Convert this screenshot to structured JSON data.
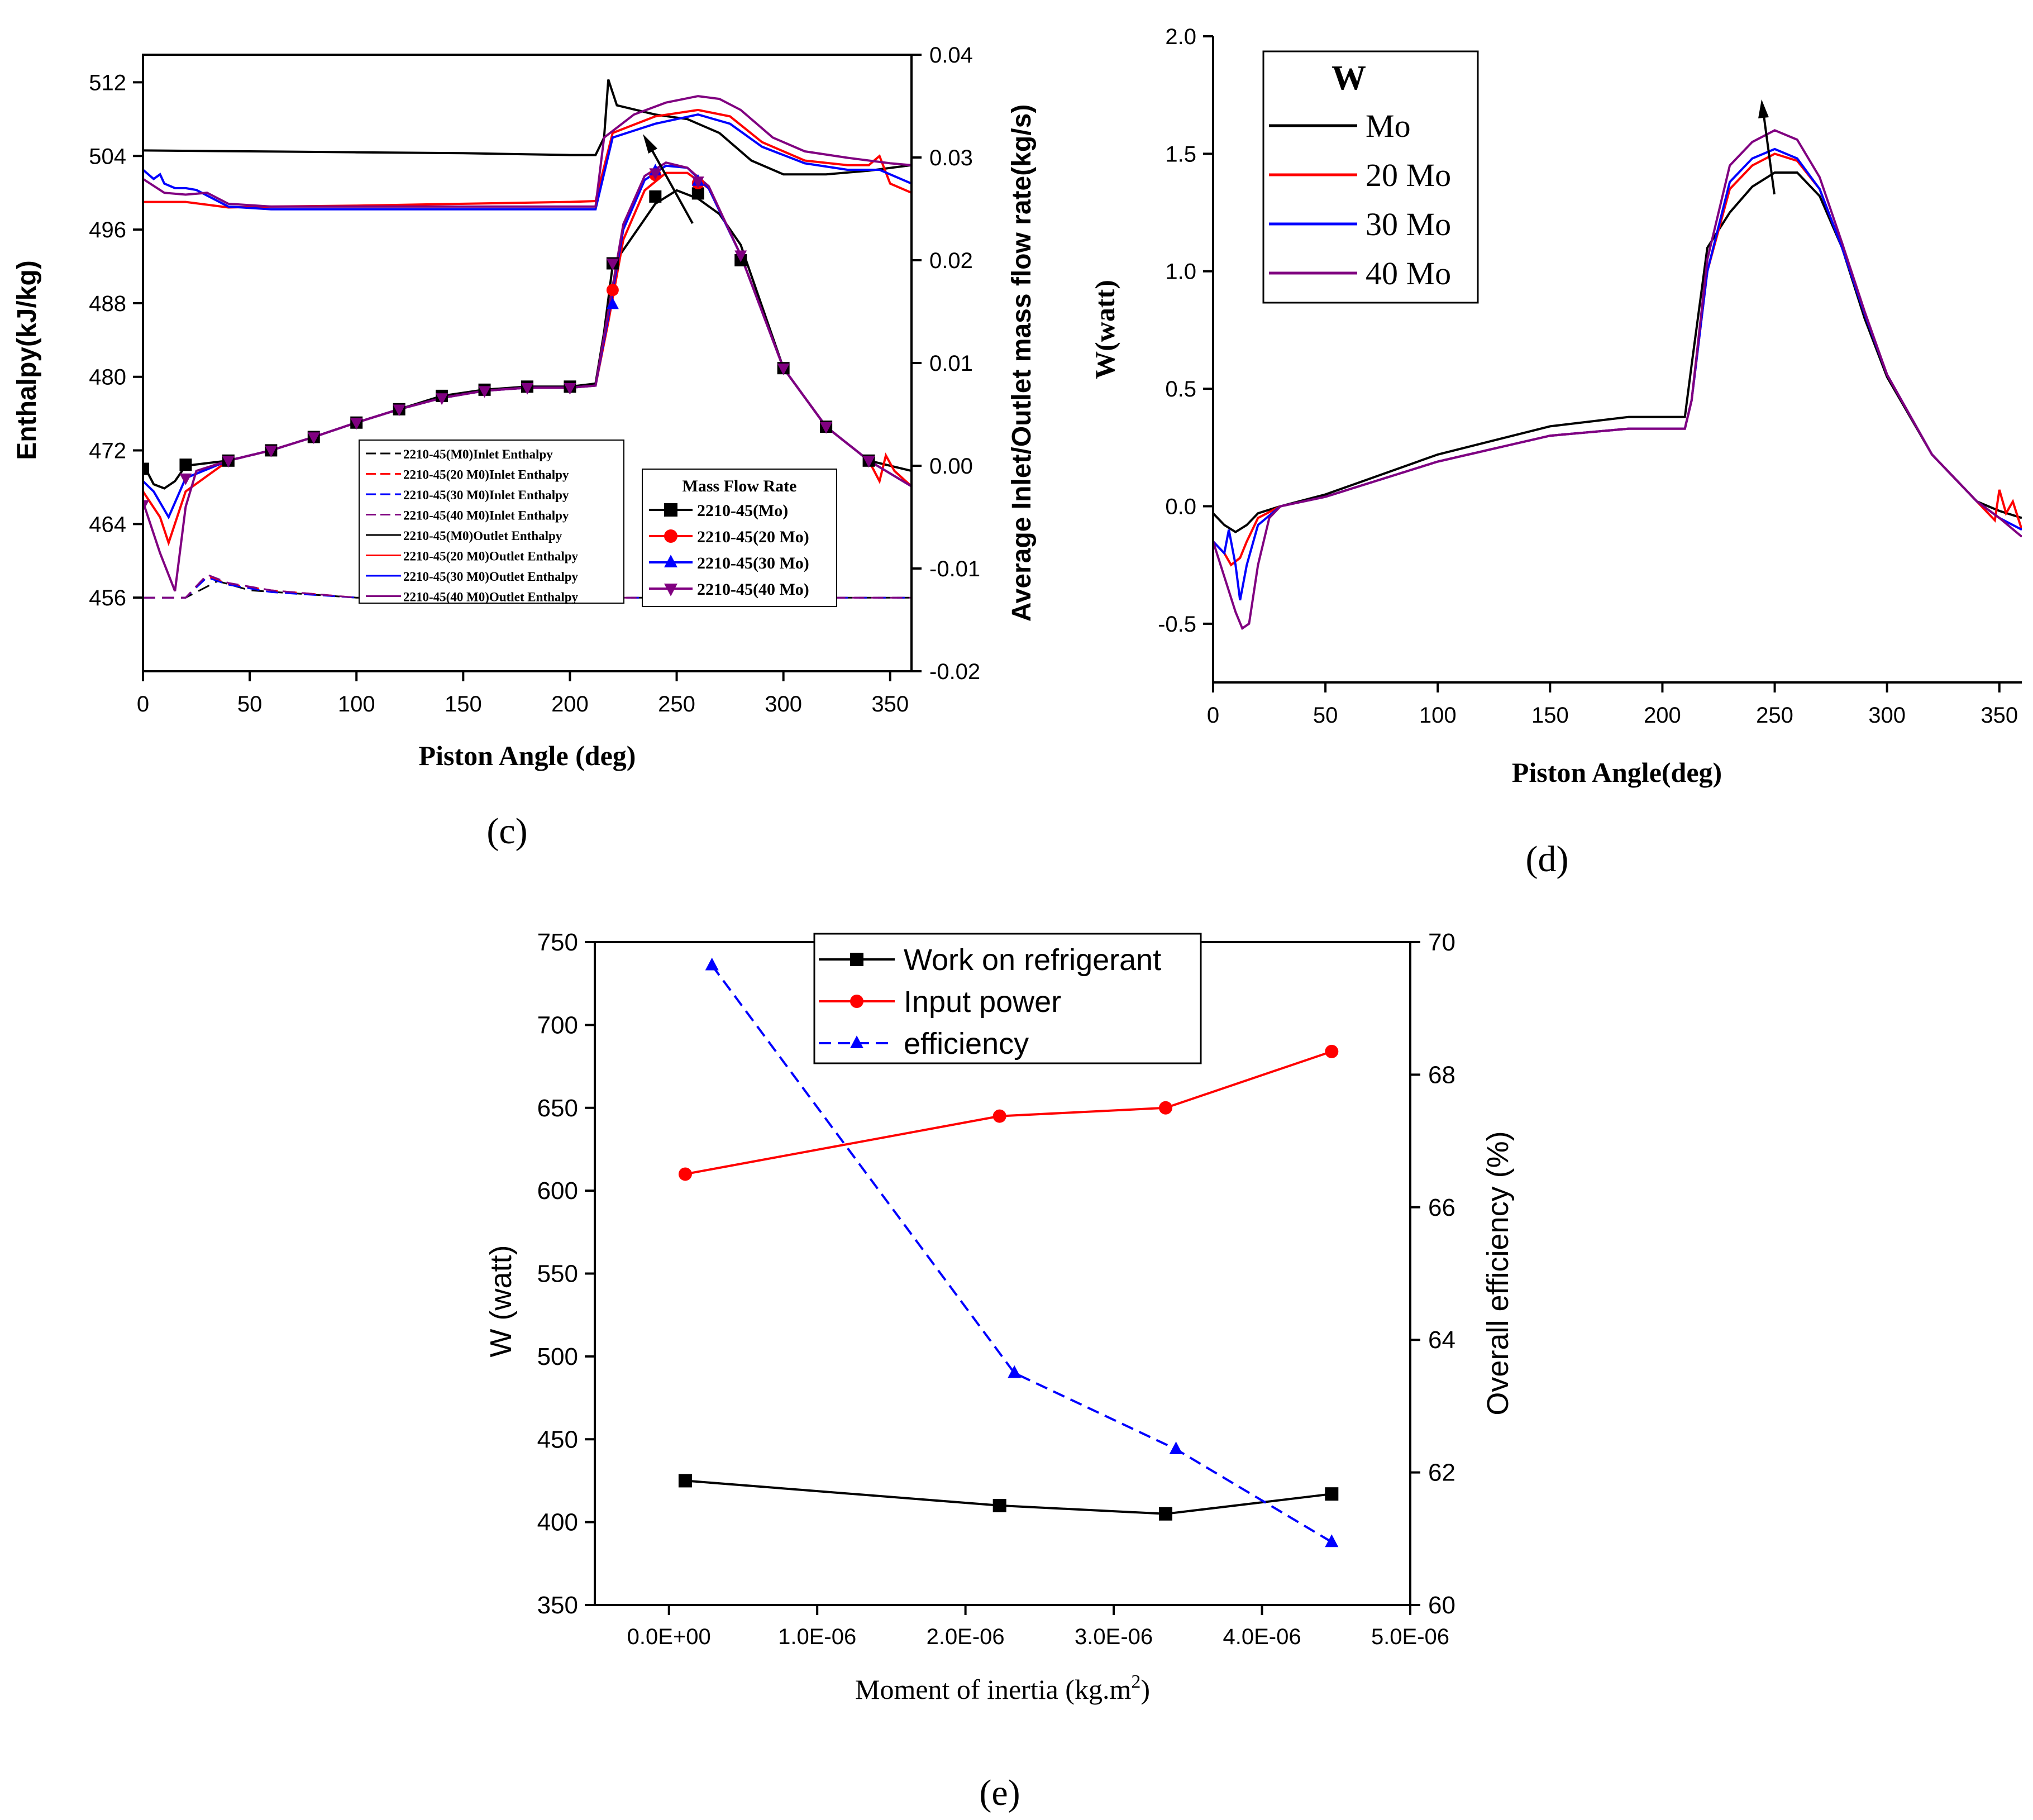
{
  "chart_data": [
    {
      "id": "c",
      "type": "line",
      "panel_label": "(c)",
      "xlabel": "Piston Angle (deg)",
      "ylabel": "Enthalpy(kJ/kg)",
      "y2label": "Average Inlet/Outlet mass flow rate(kg/s)",
      "xlim": [
        0,
        360
      ],
      "ylim": [
        448,
        515
      ],
      "y2lim": [
        -0.02,
        0.04
      ],
      "xticks": [
        "0",
        "50",
        "100",
        "150",
        "200",
        "250",
        "300",
        "350"
      ],
      "yticks": [
        "456",
        "464",
        "472",
        "480",
        "488",
        "496",
        "504",
        "512"
      ],
      "y2ticks": [
        "-0.02",
        "-0.01",
        "0.00",
        "0.01",
        "0.02",
        "0.03",
        "0.04"
      ],
      "enthalpy_legend": [
        "2210-45(M0)Inlet Enthalpy",
        "2210-45(20 M0)Inlet Enthalpy",
        "2210-45(30 M0)Inlet Enthalpy",
        "2210-45(40 M0)Inlet Enthalpy",
        "2210-45(M0)Outlet Enthalpy",
        "2210-45(20 M0)Outlet Enthalpy",
        "2210-45(30 M0)Outlet Enthalpy",
        "2210-45(40 M0)Outlet Enthalpy"
      ],
      "mass_flow_legend_title": "Mass Flow Rate",
      "mass_flow_legend": [
        "2210-45(Mo)",
        "2210-45(20 Mo)",
        "2210-45(30 Mo)",
        "2210-45(40 Mo)"
      ],
      "colors": [
        "#000000",
        "#ff0000",
        "#0000ff",
        "#800080"
      ],
      "inlet_enthalpy": [
        {
          "name": "M0",
          "x": [
            0,
            20,
            35,
            50,
            100,
            150,
            200,
            250,
            300,
            360
          ],
          "y": [
            456,
            456,
            457.8,
            456.8,
            456,
            456,
            456,
            456,
            456,
            456
          ]
        },
        {
          "name": "20 M0",
          "x": [
            0,
            20,
            30,
            40,
            60,
            100,
            150,
            200,
            250,
            300,
            360
          ],
          "y": [
            456,
            456,
            458.3,
            457.5,
            456.8,
            456,
            456,
            456,
            456,
            456,
            456
          ]
        },
        {
          "name": "30 M0",
          "x": [
            0,
            20,
            30,
            40,
            60,
            100,
            150,
            200,
            250,
            300,
            360
          ],
          "y": [
            456,
            456,
            458.2,
            457.4,
            456.6,
            456,
            456,
            456,
            456,
            456,
            456
          ]
        },
        {
          "name": "40 M0",
          "x": [
            0,
            20,
            30,
            40,
            60,
            100,
            150,
            200,
            250,
            300,
            360
          ],
          "y": [
            456,
            456,
            458.5,
            457.6,
            456.8,
            456,
            456,
            456,
            456,
            456,
            456
          ]
        }
      ],
      "outlet_enthalpy": [
        {
          "name": "M0",
          "x": [
            0,
            50,
            100,
            150,
            200,
            212,
            216,
            218,
            222,
            240,
            255,
            270,
            285,
            300,
            320,
            340,
            360
          ],
          "y": [
            504.6,
            504.5,
            504.4,
            504.3,
            504.1,
            504.1,
            506,
            512.3,
            509.5,
            508.5,
            508,
            506.5,
            503.5,
            502,
            502,
            502.4,
            503
          ]
        },
        {
          "name": "20 M0",
          "x": [
            0,
            20,
            40,
            60,
            100,
            150,
            200,
            212,
            220,
            240,
            260,
            275,
            290,
            310,
            330,
            340,
            345,
            350,
            360
          ],
          "y": [
            499,
            499,
            498.4,
            498.5,
            498.6,
            498.8,
            499,
            499.1,
            506.5,
            508.3,
            509,
            508.3,
            505.5,
            503.5,
            503,
            503,
            504,
            501,
            500
          ]
        },
        {
          "name": "30 M0",
          "x": [
            0,
            5,
            8,
            10,
            15,
            20,
            25,
            40,
            60,
            100,
            150,
            200,
            212,
            220,
            240,
            260,
            275,
            290,
            310,
            330,
            345,
            360
          ],
          "y": [
            502.5,
            501.5,
            502,
            501,
            500.5,
            500.5,
            500.3,
            498.5,
            498.2,
            498.2,
            498.2,
            498.2,
            498.2,
            506,
            507.5,
            508.5,
            507.5,
            505,
            503.2,
            502.5,
            502.5,
            501
          ]
        },
        {
          "name": "40 M0",
          "x": [
            0,
            10,
            20,
            30,
            40,
            60,
            100,
            150,
            200,
            212,
            216,
            230,
            245,
            260,
            270,
            280,
            295,
            310,
            330,
            350,
            360
          ],
          "y": [
            501.5,
            500,
            499.8,
            500,
            498.8,
            498.5,
            498.5,
            498.5,
            498.5,
            498.5,
            506,
            508.5,
            509.8,
            510.5,
            510.2,
            509,
            506,
            504.5,
            503.8,
            503.2,
            503
          ]
        }
      ],
      "mass_flow": [
        {
          "name": "2210-45(Mo)",
          "x": [
            0,
            5,
            10,
            15,
            20,
            40,
            60,
            80,
            100,
            120,
            140,
            160,
            180,
            200,
            212,
            216,
            220,
            230,
            240,
            250,
            260,
            270,
            280,
            300,
            320,
            340,
            360
          ],
          "y": [
            0.0002,
            -0.0018,
            -0.0022,
            -0.0015,
            0,
            0.0005,
            0.0015,
            0.0028,
            0.0042,
            0.0055,
            0.0068,
            0.0074,
            0.0077,
            0.0077,
            0.008,
            0.013,
            0.0195,
            0.0225,
            0.0255,
            0.0268,
            0.026,
            0.0245,
            0.0215,
            0.0095,
            0.0038,
            0.0005,
            -0.0005
          ],
          "markers_x": [
            0,
            20,
            40,
            60,
            80,
            100,
            120,
            140,
            160,
            180,
            200,
            220,
            240,
            260,
            280,
            300,
            320,
            340
          ],
          "markers_y": [
            -0.0003,
            0.0001,
            0.0005,
            0.0015,
            0.0028,
            0.0042,
            0.0055,
            0.0068,
            0.0074,
            0.0077,
            0.0077,
            0.0197,
            0.0262,
            0.0265,
            0.02,
            0.0095,
            0.0038,
            0.0005
          ]
        },
        {
          "name": "2210-45(20 Mo)",
          "x": [
            0,
            8,
            12,
            20,
            40,
            60,
            80,
            100,
            120,
            140,
            160,
            180,
            200,
            212,
            218,
            225,
            235,
            245,
            255,
            265,
            280,
            300,
            320,
            340,
            345,
            348,
            352,
            360
          ],
          "y": [
            -0.0025,
            -0.005,
            -0.0075,
            -0.0025,
            0.0005,
            0.0015,
            0.0028,
            0.0042,
            0.0055,
            0.0066,
            0.0073,
            0.0076,
            0.0076,
            0.0078,
            0.014,
            0.022,
            0.0268,
            0.0285,
            0.0285,
            0.027,
            0.0205,
            0.0095,
            0.0038,
            0.0005,
            -0.0015,
            0.001,
            -0.0005,
            -0.002
          ],
          "markers_x": [
            220,
            240,
            260
          ],
          "markers_y": [
            0.0171,
            0.0283,
            0.0275
          ]
        },
        {
          "name": "2210-45(30 Mo)",
          "x": [
            0,
            5,
            12,
            20,
            40,
            60,
            80,
            100,
            120,
            140,
            160,
            180,
            200,
            212,
            218,
            225,
            235,
            245,
            255,
            265,
            280,
            300,
            320,
            340,
            360
          ],
          "y": [
            -0.0015,
            -0.0025,
            -0.005,
            -0.0012,
            0.0005,
            0.0015,
            0.0028,
            0.0042,
            0.0055,
            0.0066,
            0.0073,
            0.0076,
            0.0076,
            0.0078,
            0.0145,
            0.023,
            0.0278,
            0.0292,
            0.029,
            0.027,
            0.0205,
            0.0095,
            0.0038,
            0.0005,
            -0.002
          ],
          "markers_x": [
            220,
            240,
            260
          ],
          "markers_y": [
            0.0157,
            0.0287,
            0.0277
          ]
        },
        {
          "name": "2210-45(40 Mo)",
          "x": [
            0,
            8,
            15,
            20,
            25,
            40,
            60,
            80,
            100,
            120,
            140,
            160,
            180,
            200,
            212,
            218,
            225,
            235,
            245,
            255,
            265,
            280,
            300,
            320,
            340,
            360
          ],
          "y": [
            -0.0035,
            -0.0085,
            -0.0122,
            -0.004,
            -0.0005,
            0.0005,
            0.0015,
            0.0028,
            0.0042,
            0.0055,
            0.0066,
            0.0073,
            0.0076,
            0.0076,
            0.0078,
            0.015,
            0.0235,
            0.0282,
            0.0295,
            0.029,
            0.0272,
            0.0205,
            0.0095,
            0.0038,
            0.0005,
            -0.002
          ],
          "markers_x": [
            0,
            20,
            40,
            60,
            80,
            100,
            120,
            140,
            160,
            180,
            200,
            220,
            240,
            260,
            280,
            300,
            320,
            340
          ],
          "markers_y": [
            -0.0038,
            -0.0012,
            0.0005,
            0.0015,
            0.0028,
            0.0042,
            0.0055,
            0.0066,
            0.0073,
            0.0076,
            0.0076,
            0.0197,
            0.0285,
            0.0277,
            0.0205,
            0.0095,
            0.0038,
            0.0005
          ]
        }
      ]
    },
    {
      "id": "d",
      "type": "line",
      "panel_label": "(d)",
      "xlabel": "Piston Angle(deg)",
      "ylabel": "W(watt)",
      "xlim": [
        0,
        360
      ],
      "ylim": [
        -0.75,
        2.0
      ],
      "xticks": [
        "0",
        "50",
        "100",
        "150",
        "200",
        "250",
        "300",
        "350"
      ],
      "yticks": [
        "-0.5",
        "0.0",
        "0.5",
        "1.0",
        "1.5",
        "2.0"
      ],
      "legend_title": "W",
      "colors": [
        "#000000",
        "#ff0000",
        "#0000ff",
        "#800080"
      ],
      "series": [
        {
          "name": "Mo",
          "x": [
            0,
            5,
            10,
            15,
            20,
            30,
            50,
            100,
            150,
            185,
            200,
            210,
            213,
            220,
            230,
            240,
            250,
            260,
            270,
            280,
            290,
            300,
            320,
            340,
            350,
            360
          ],
          "y": [
            -0.03,
            -0.08,
            -0.11,
            -0.08,
            -0.03,
            0.0,
            0.05,
            0.22,
            0.34,
            0.38,
            0.38,
            0.38,
            0.6,
            1.1,
            1.25,
            1.36,
            1.42,
            1.42,
            1.32,
            1.1,
            0.8,
            0.55,
            0.22,
            0.02,
            -0.02,
            -0.05
          ]
        },
        {
          "name": "20 Mo",
          "x": [
            0,
            5,
            8,
            12,
            15,
            20,
            30,
            50,
            100,
            150,
            185,
            200,
            210,
            213,
            220,
            230,
            240,
            250,
            260,
            270,
            280,
            290,
            300,
            320,
            340,
            348,
            350,
            353,
            356,
            360
          ],
          "y": [
            -0.15,
            -0.2,
            -0.25,
            -0.22,
            -0.15,
            -0.05,
            0.0,
            0.04,
            0.19,
            0.3,
            0.33,
            0.33,
            0.33,
            0.45,
            1.0,
            1.35,
            1.45,
            1.5,
            1.47,
            1.35,
            1.1,
            0.82,
            0.56,
            0.22,
            0.02,
            -0.06,
            0.07,
            -0.03,
            0.02,
            -0.1
          ]
        },
        {
          "name": "30 Mo",
          "x": [
            0,
            5,
            7,
            10,
            12,
            15,
            20,
            30,
            50,
            100,
            150,
            185,
            200,
            210,
            213,
            220,
            230,
            240,
            250,
            260,
            270,
            280,
            290,
            300,
            320,
            340,
            350,
            360
          ],
          "y": [
            -0.15,
            -0.2,
            -0.1,
            -0.25,
            -0.4,
            -0.25,
            -0.08,
            0.0,
            0.04,
            0.19,
            0.3,
            0.33,
            0.33,
            0.33,
            0.45,
            1.0,
            1.38,
            1.48,
            1.52,
            1.48,
            1.35,
            1.1,
            0.82,
            0.56,
            0.22,
            0.02,
            -0.05,
            -0.1
          ]
        },
        {
          "name": "40 Mo",
          "x": [
            0,
            5,
            10,
            13,
            16,
            20,
            25,
            30,
            50,
            100,
            150,
            185,
            200,
            210,
            213,
            220,
            230,
            240,
            250,
            260,
            270,
            280,
            290,
            300,
            320,
            340,
            350,
            360
          ],
          "y": [
            -0.15,
            -0.3,
            -0.45,
            -0.52,
            -0.5,
            -0.25,
            -0.05,
            0.0,
            0.04,
            0.19,
            0.3,
            0.33,
            0.33,
            0.33,
            0.45,
            1.05,
            1.45,
            1.55,
            1.6,
            1.56,
            1.4,
            1.12,
            0.83,
            0.56,
            0.22,
            0.02,
            -0.05,
            -0.13
          ]
        }
      ]
    },
    {
      "id": "e",
      "type": "line",
      "panel_label": "(e)",
      "xlabel_main": "Moment of inertia (kg.m",
      "xlabel_sup": "2",
      "xlabel_end": ")",
      "ylabel": "W (watt)",
      "y2label": "Overall efficiency (%)",
      "xlim": [
        -5e-07,
        5e-06
      ],
      "ylim": [
        350,
        750
      ],
      "y2lim": [
        60,
        70
      ],
      "xticks": [
        "0.0E+00",
        "1.0E-06",
        "2.0E-06",
        "3.0E-06",
        "4.0E-06",
        "5.0E-06"
      ],
      "yticks": [
        "350",
        "400",
        "450",
        "500",
        "550",
        "600",
        "650",
        "700",
        "750"
      ],
      "y2ticks": [
        "60",
        "62",
        "64",
        "66",
        "68",
        "70"
      ],
      "series": [
        {
          "name": "Work on refrigerant",
          "axis": "left",
          "color": "#000000",
          "marker": "square",
          "dash": "solid",
          "x": [
            1.1e-07,
            2.23e-06,
            3.35e-06,
            4.47e-06
          ],
          "y": [
            425,
            410,
            405,
            417
          ]
        },
        {
          "name": "Input power",
          "axis": "left",
          "color": "#ff0000",
          "marker": "circle",
          "dash": "solid",
          "x": [
            1.1e-07,
            2.23e-06,
            3.35e-06,
            4.47e-06
          ],
          "y": [
            610,
            645,
            650,
            684
          ]
        },
        {
          "name": "efficiency",
          "axis": "right",
          "color": "#0000ff",
          "marker": "triangle",
          "dash": "dashed",
          "x": [
            2.9e-07,
            2.33e-06,
            3.42e-06,
            4.47e-06
          ],
          "y": [
            69.65,
            63.5,
            62.35,
            60.95
          ]
        }
      ]
    }
  ]
}
